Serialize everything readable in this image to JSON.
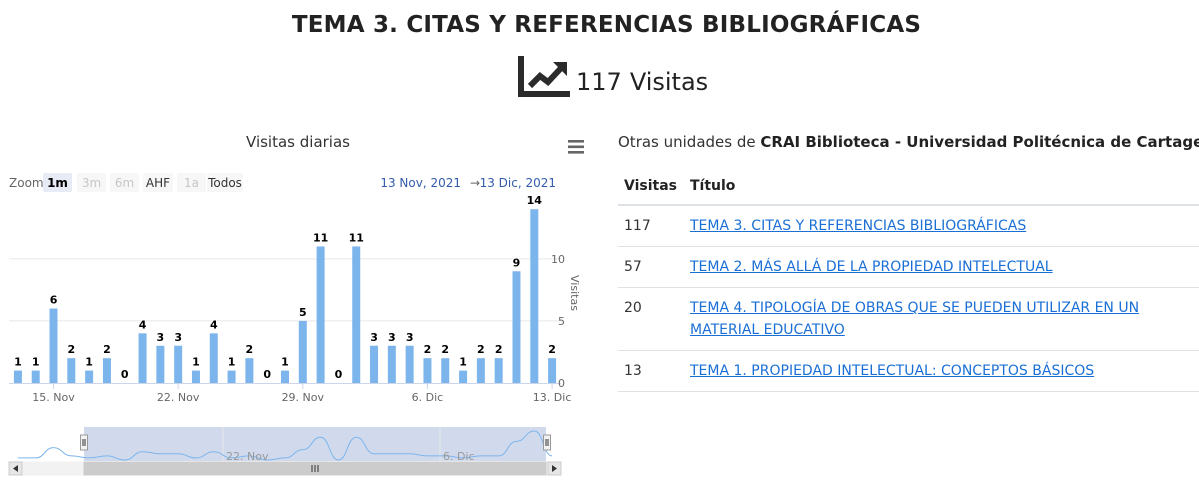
{
  "header": {
    "title": "TEMA 3. CITAS Y REFERENCIAS BIBLIOGRÁFICAS",
    "visits_count": "117",
    "visits_label": "Visitas",
    "icon": "chart-trend-icon"
  },
  "range_selector": {
    "zoom_label": "Zoom",
    "buttons": [
      "1m",
      "3m",
      "6m",
      "AHF",
      "1a",
      "Todos"
    ],
    "from": "13 Nov, 2021",
    "arrow": "→",
    "to": "13 Dic, 2021"
  },
  "navigator": {
    "labels": [
      "22. Nov",
      "6. Dic"
    ]
  },
  "chart_data": {
    "type": "bar",
    "title": "Visitas diarias",
    "ylabel": "Visitas",
    "ylim": [
      0,
      14.5
    ],
    "y_ticks": [
      0,
      5,
      10
    ],
    "x_tick_labels": [
      "15. Nov",
      "22. Nov",
      "29. Nov",
      "6. Dic",
      "13. Dic"
    ],
    "x": [
      "2021-11-13",
      "2021-11-14",
      "2021-11-15",
      "2021-11-16",
      "2021-11-17",
      "2021-11-18",
      "2021-11-19",
      "2021-11-20",
      "2021-11-21",
      "2021-11-22",
      "2021-11-23",
      "2021-11-24",
      "2021-11-25",
      "2021-11-26",
      "2021-11-27",
      "2021-11-28",
      "2021-11-29",
      "2021-11-30",
      "2021-12-01",
      "2021-12-02",
      "2021-12-03",
      "2021-12-04",
      "2021-12-05",
      "2021-12-06",
      "2021-12-07",
      "2021-12-08",
      "2021-12-09",
      "2021-12-10",
      "2021-12-11",
      "2021-12-12",
      "2021-12-13"
    ],
    "values": [
      1,
      1,
      6,
      2,
      1,
      2,
      0,
      4,
      3,
      3,
      1,
      4,
      1,
      2,
      0,
      1,
      5,
      11,
      0,
      11,
      3,
      3,
      3,
      2,
      2,
      1,
      2,
      2,
      9,
      14,
      2
    ],
    "color": "#7cb5ec",
    "grid": true,
    "data_labels": true
  },
  "other_units": {
    "prefix": "Otras unidades de",
    "org": "CRAI Biblioteca - Universidad Politécnica de Cartagena"
  },
  "table": {
    "headers": [
      "Visitas",
      "Título"
    ],
    "rows": [
      {
        "visitas": "117",
        "titulo": "TEMA 3. CITAS Y REFERENCIAS BIBLIOGRÁFICAS"
      },
      {
        "visitas": "57",
        "titulo": "TEMA 2. MÁS ALLÁ DE LA PROPIEDAD INTELECTUAL"
      },
      {
        "visitas": "20",
        "titulo": "TEMA 4. TIPOLOGÍA DE OBRAS QUE SE PUEDEN UTILIZAR EN UN MATERIAL EDUCATIVO"
      },
      {
        "visitas": "13",
        "titulo": "TEMA 1. PROPIEDAD INTELECTUAL: CONCEPTOS BÁSICOS"
      }
    ]
  }
}
